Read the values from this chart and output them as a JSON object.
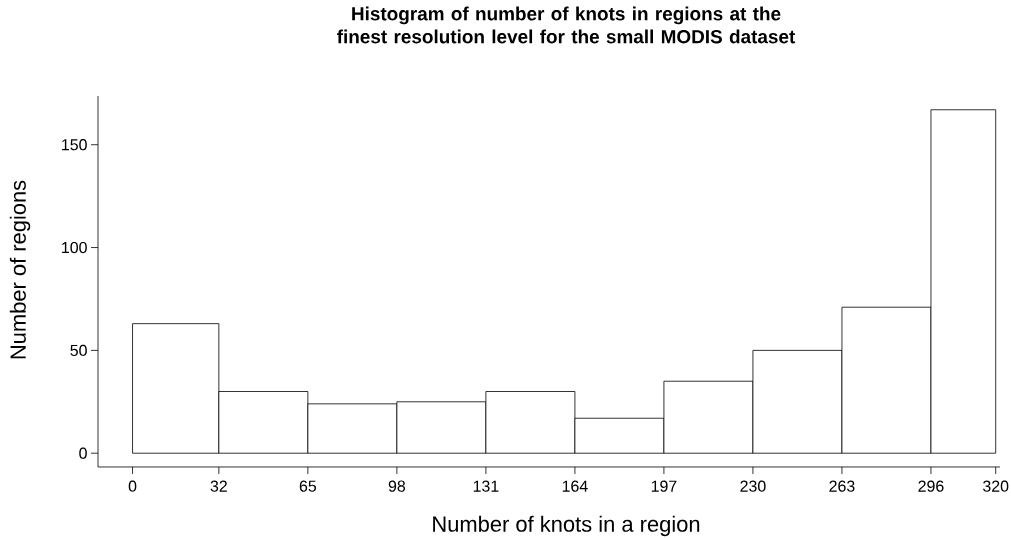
{
  "chart_data": {
    "type": "histogram",
    "title": "Histogram of number of knots in regions at the finest resolution level for the small MODIS dataset",
    "xlabel": "Number of knots in a region",
    "ylabel": "Number of regions",
    "bins": [
      0,
      32,
      65,
      98,
      131,
      164,
      197,
      230,
      263,
      296,
      320
    ],
    "values": [
      63,
      30,
      24,
      25,
      30,
      17,
      35,
      50,
      71,
      167
    ],
    "color": "#ffffff",
    "xlim": [
      -12.8,
      321.6
    ],
    "xticks": [
      0,
      32,
      65,
      98,
      131,
      164,
      197,
      230,
      263,
      296,
      320
    ],
    "ylim": [
      -6.7,
      173.7
    ],
    "yticks": [
      0,
      50,
      100,
      150
    ]
  }
}
